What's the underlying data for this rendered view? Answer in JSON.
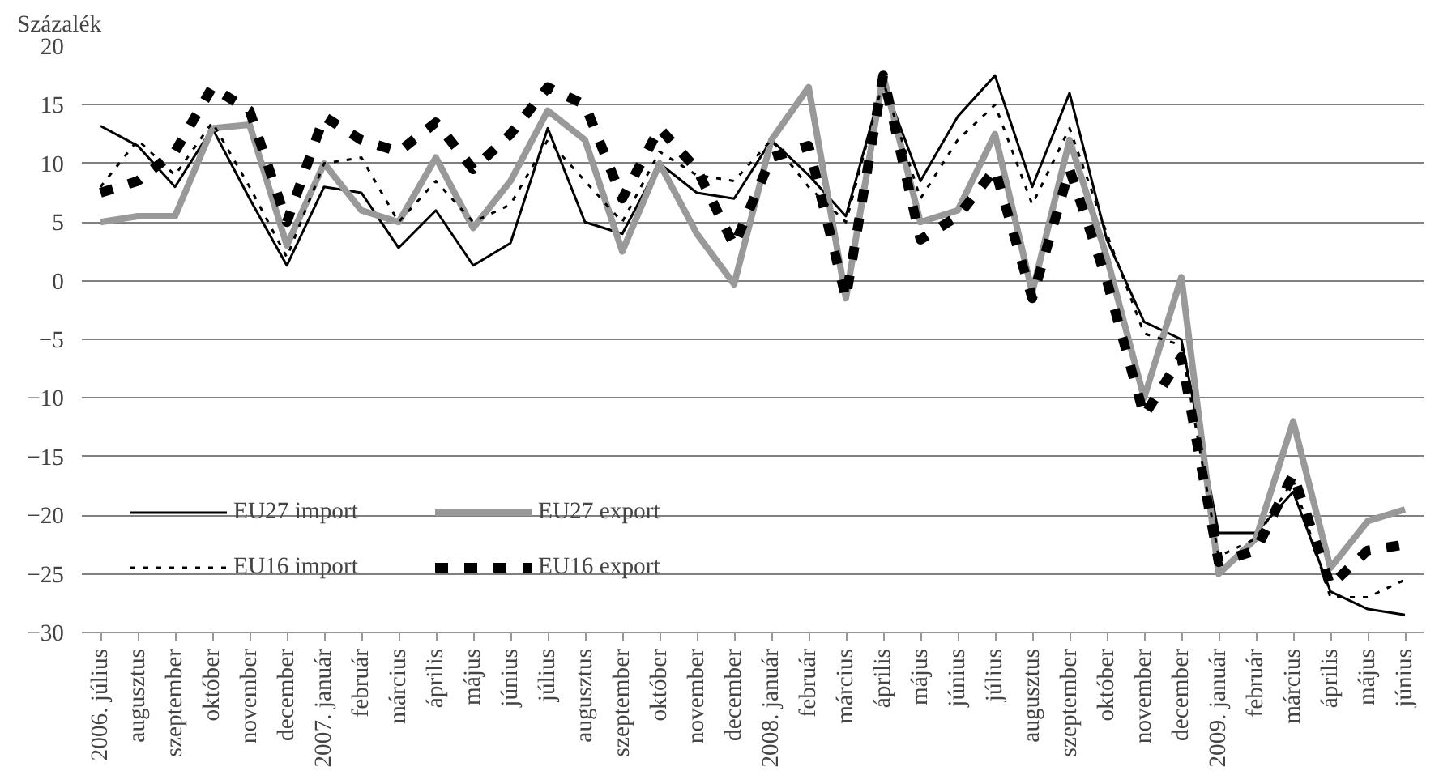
{
  "chart_data": {
    "type": "line",
    "ylabel": "Százalék",
    "categories": [
      "2006. július",
      "augusztus",
      "szeptember",
      "október",
      "november",
      "december",
      "2007. január",
      "február",
      "március",
      "április",
      "május",
      "június",
      "július",
      "augusztus",
      "szeptember",
      "október",
      "november",
      "december",
      "2008. január",
      "február",
      "március",
      "április",
      "május",
      "június",
      "július",
      "augusztus",
      "szeptember",
      "október",
      "november",
      "december",
      "2009. január",
      "február",
      "március",
      "április",
      "május",
      "június"
    ],
    "series": [
      {
        "name": "EU27 import",
        "color": "#000000",
        "line_style": "solid",
        "values": [
          13.2,
          11.5,
          8,
          13,
          7,
          1.3,
          8,
          7.5,
          2.8,
          6,
          1.3,
          3.2,
          13,
          5,
          4,
          10,
          7.5,
          7,
          12,
          9,
          5.5,
          17,
          8.5,
          14,
          17.5,
          8,
          16,
          3.5,
          -3.5,
          -5,
          -21.5,
          -21.5,
          -18,
          -26.5,
          -28,
          -28.5
        ]
      },
      {
        "name": "EU27 export",
        "color": "#999999",
        "line_style": "solid",
        "values": [
          5,
          5.5,
          5.5,
          13,
          13.3,
          3,
          10,
          6,
          5,
          10.5,
          4.5,
          8.5,
          14.5,
          12,
          2.5,
          10,
          4,
          -0.3,
          12,
          16.5,
          -1.5,
          17.5,
          5,
          6,
          12.5,
          -1,
          12,
          2,
          -10,
          0.3,
          -25,
          -22,
          -12,
          -24.5,
          -20.5,
          -19.5
        ]
      },
      {
        "name": "EU16 import",
        "color": "#000000",
        "line_style": "dotted",
        "values": [
          8,
          12,
          9,
          13.5,
          8,
          2,
          10,
          10.5,
          5,
          8.5,
          5,
          6.5,
          12,
          8.5,
          5,
          11,
          9,
          8.5,
          12,
          8,
          5,
          17,
          7,
          12,
          15,
          6.5,
          13,
          4,
          -4.5,
          -5.5,
          -23.5,
          -22,
          -17,
          -27,
          -27,
          -25.5
        ]
      },
      {
        "name": "EU16 export",
        "color": "#000000",
        "line_style": "dashed",
        "values": [
          7.5,
          8.5,
          11,
          16.5,
          14.5,
          5,
          14,
          12,
          11,
          13.5,
          9.5,
          12.5,
          16.5,
          15,
          7,
          13,
          9.5,
          3,
          10.5,
          11.5,
          -1.5,
          17.5,
          3.5,
          5.5,
          9.5,
          -1.5,
          9.5,
          0,
          -11.5,
          -6.5,
          -24,
          -23,
          -16.5,
          -26,
          -23,
          -22.5
        ]
      }
    ],
    "ylim": [
      -30,
      20
    ],
    "yticks": [
      -30,
      -25,
      -20,
      -15,
      -10,
      -5,
      0,
      5,
      10,
      15,
      20
    ],
    "grid": "y",
    "legend": "bottom left",
    "marker": "none"
  }
}
